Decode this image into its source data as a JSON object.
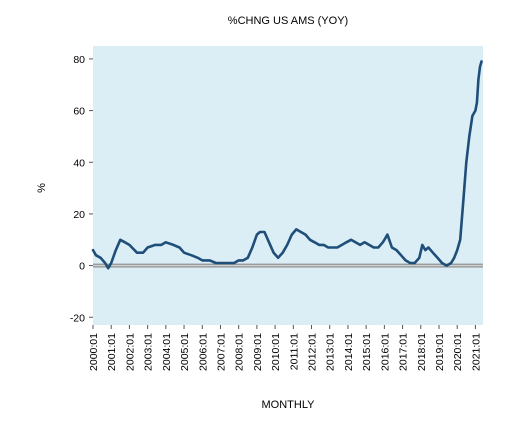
{
  "chart_data": {
    "type": "line",
    "title": "%CHNG US AMS (YOY)",
    "xlabel": "MONTHLY",
    "ylabel": "%",
    "ylim": [
      -23,
      85
    ],
    "xlim": [
      "2000-01",
      "2021-06"
    ],
    "yticks": [
      -20,
      0,
      20,
      40,
      60,
      80
    ],
    "xtick_labels": [
      "2000:01",
      "2001:01",
      "2002:01",
      "2003:01",
      "2004:01",
      "2005:01",
      "2006:01",
      "2007:01",
      "2008:01",
      "2009:01",
      "2010:01",
      "2011:01",
      "2012:01",
      "2013:01",
      "2014:01",
      "2015:01",
      "2016:01",
      "2017:01",
      "2018:01",
      "2019:01",
      "2020:01",
      "2021:01"
    ],
    "zero_line": true,
    "grid": false,
    "colors": {
      "plot_bg": "#dbeef5",
      "line": "#1f4e79",
      "zero_line": "#8c8c8c"
    },
    "series": [
      {
        "x": [
          "2000-01",
          "2000-03",
          "2000-06",
          "2000-09",
          "2000-11",
          "2001-01",
          "2001-04",
          "2001-07",
          "2001-10",
          "2002-01",
          "2002-06",
          "2002-10",
          "2003-01",
          "2003-06",
          "2003-10",
          "2004-01",
          "2004-06",
          "2004-10",
          "2005-01",
          "2005-06",
          "2005-10",
          "2006-01",
          "2006-06",
          "2006-10",
          "2007-01",
          "2007-06",
          "2007-10",
          "2008-01",
          "2008-04",
          "2008-07",
          "2008-10",
          "2009-01",
          "2009-03",
          "2009-06",
          "2009-09",
          "2009-12",
          "2010-03",
          "2010-06",
          "2010-09",
          "2010-12",
          "2011-03",
          "2011-06",
          "2011-09",
          "2011-12",
          "2012-03",
          "2012-06",
          "2012-09",
          "2012-12",
          "2013-03",
          "2013-06",
          "2013-09",
          "2013-12",
          "2014-03",
          "2014-06",
          "2014-09",
          "2014-12",
          "2015-03",
          "2015-06",
          "2015-09",
          "2015-12",
          "2016-01",
          "2016-03",
          "2016-06",
          "2016-09",
          "2016-12",
          "2017-03",
          "2017-06",
          "2017-09",
          "2017-12",
          "2018-02",
          "2018-04",
          "2018-06",
          "2018-09",
          "2018-12",
          "2019-03",
          "2019-06",
          "2019-09",
          "2019-11",
          "2020-01",
          "2020-03",
          "2020-05",
          "2020-07",
          "2020-09",
          "2020-11",
          "2021-01",
          "2021-02",
          "2021-03",
          "2021-04",
          "2021-05"
        ],
        "values": [
          6,
          4,
          3,
          1,
          -1,
          1,
          6,
          10,
          9,
          8,
          5,
          5,
          7,
          8,
          8,
          9,
          8,
          7,
          5,
          4,
          3,
          2,
          2,
          1,
          1,
          1,
          1,
          2,
          2,
          3,
          7,
          12,
          13,
          13,
          9,
          5,
          3,
          5,
          8,
          12,
          14,
          13,
          12,
          10,
          9,
          8,
          8,
          7,
          7,
          7,
          8,
          9,
          10,
          9,
          8,
          9,
          8,
          7,
          7,
          9,
          10,
          12,
          7,
          6,
          4,
          2,
          1,
          1,
          3,
          8,
          6,
          7,
          5,
          3,
          1,
          0,
          1,
          3,
          6,
          10,
          25,
          40,
          50,
          58,
          60,
          63,
          72,
          77,
          79
        ]
      }
    ]
  }
}
